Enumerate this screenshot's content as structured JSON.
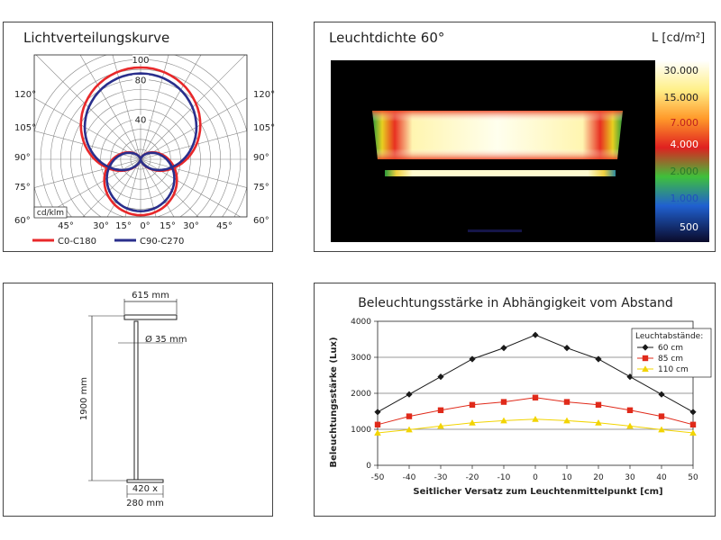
{
  "chart_data": [
    {
      "type": "polar",
      "title": "Lichtverteilungskurve",
      "unit_label": "cd/klm",
      "radial_ticks": [
        40,
        80,
        100
      ],
      "angle_labels_left": [
        "120°",
        "105°",
        "90°",
        "75°",
        "60°"
      ],
      "angle_labels_right": [
        "120°",
        "105°",
        "90°",
        "75°",
        "60°"
      ],
      "angle_labels_bottom": [
        "45°",
        "30°",
        "15°",
        "0°",
        "15°",
        "30°",
        "45°"
      ],
      "series": [
        {
          "name": "C0-C180",
          "color": "#e8282a",
          "down": 92,
          "up": 56
        },
        {
          "name": "C90-C270",
          "color": "#2a2f8c",
          "down": 86,
          "up": 52
        }
      ]
    },
    {
      "type": "heatmap",
      "title": "Leuchtdichte 60°",
      "scale_label": "L [cd/m²]",
      "scale_values": [
        "30.000",
        "15.000",
        "7.000",
        "4.000",
        "2.000",
        "1.000",
        "500"
      ],
      "scale_colors": [
        "#ffffff",
        "#fff08a",
        "#ff9a2a",
        "#e02020",
        "#3fc03a",
        "#2060d0",
        "#101030"
      ]
    },
    {
      "type": "diagram",
      "dimensions": {
        "head_width": "615 mm",
        "pole_diameter": "Ø 35 mm",
        "height": "1900 mm",
        "base_line1": "420 x",
        "base_line2": "280 mm"
      }
    },
    {
      "type": "line",
      "title": "Beleuchtungsstärke in Abhängigkeit vom Abstand",
      "xlabel": "Seitlicher Versatz zum Leuchtenmittelpunkt [cm]",
      "ylabel": "Beleuchtungsstärke (Lux)",
      "x": [
        -50,
        -40,
        -30,
        -20,
        -10,
        0,
        10,
        20,
        30,
        40,
        50
      ],
      "xlim": [
        -50,
        50
      ],
      "ylim": [
        0,
        4000
      ],
      "yticks": [
        0,
        1000,
        2000,
        3000,
        4000
      ],
      "grid": true,
      "legend_title": "Leuchtabstände:",
      "legend_position": "top-right",
      "series": [
        {
          "name": "60 cm",
          "color": "#1a1a1a",
          "marker": "diamond",
          "values": [
            1480,
            1970,
            2460,
            2950,
            3260,
            3620,
            3260,
            2950,
            2460,
            1970,
            1480
          ]
        },
        {
          "name": "85 cm",
          "color": "#e02a1a",
          "marker": "square",
          "values": [
            1130,
            1360,
            1530,
            1680,
            1760,
            1880,
            1760,
            1680,
            1530,
            1360,
            1130
          ]
        },
        {
          "name": "110 cm",
          "color": "#f2d400",
          "marker": "triangle",
          "values": [
            900,
            990,
            1090,
            1180,
            1240,
            1280,
            1240,
            1180,
            1090,
            990,
            900
          ]
        }
      ]
    }
  ]
}
